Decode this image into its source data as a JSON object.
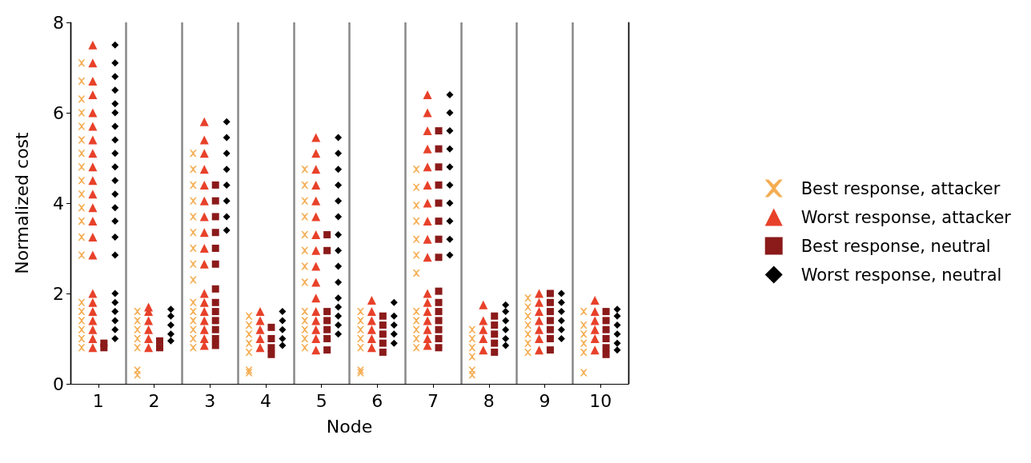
{
  "chart_data": {
    "type": "scatter",
    "xlabel": "Node",
    "ylabel": "Normalized cost",
    "categories": [
      "1",
      "2",
      "3",
      "4",
      "5",
      "6",
      "7",
      "8",
      "9",
      "10"
    ],
    "ylim": [
      0,
      8
    ],
    "yticks": [
      0,
      2,
      4,
      6,
      8
    ],
    "grid": "x",
    "legend": "right",
    "series": [
      {
        "name": "Best response, attacker",
        "color": "#f5ad52",
        "marker": "cross",
        "x": [
          "1",
          "1",
          "1",
          "1",
          "1",
          "1",
          "1",
          "1",
          "1",
          "1",
          "1",
          "1",
          "1",
          "1",
          "1",
          "1",
          "1",
          "1",
          "1",
          "1",
          "2",
          "2",
          "2",
          "2",
          "2",
          "2",
          "2",
          "3",
          "3",
          "3",
          "3",
          "3",
          "3",
          "3",
          "3",
          "3",
          "3",
          "3",
          "3",
          "3",
          "3",
          "3",
          "4",
          "4",
          "4",
          "4",
          "4",
          "4",
          "4",
          "5",
          "5",
          "5",
          "5",
          "5",
          "5",
          "5",
          "5",
          "5",
          "5",
          "5",
          "5",
          "5",
          "6",
          "6",
          "6",
          "6",
          "6",
          "6",
          "6",
          "7",
          "7",
          "7",
          "7",
          "7",
          "7",
          "7",
          "7",
          "7",
          "7",
          "7",
          "7",
          "8",
          "8",
          "8",
          "8",
          "8",
          "8",
          "9",
          "9",
          "9",
          "9",
          "9",
          "9",
          "9",
          "10",
          "10",
          "10",
          "10",
          "10",
          "10"
        ],
        "values": [
          0.8,
          1.0,
          1.2,
          1.4,
          1.6,
          1.8,
          2.85,
          3.25,
          3.6,
          3.9,
          4.2,
          4.5,
          4.8,
          5.1,
          5.4,
          5.7,
          6.0,
          6.3,
          6.7,
          7.1,
          0.2,
          0.3,
          0.8,
          1.0,
          1.2,
          1.4,
          1.6,
          0.8,
          1.0,
          1.2,
          1.4,
          1.6,
          1.8,
          2.3,
          2.65,
          3.0,
          3.35,
          3.7,
          4.05,
          4.4,
          4.75,
          5.1,
          0.25,
          0.3,
          0.7,
          0.9,
          1.1,
          1.3,
          1.5,
          0.8,
          1.0,
          1.2,
          1.4,
          1.6,
          2.25,
          2.6,
          2.95,
          3.3,
          3.7,
          4.05,
          4.4,
          4.75,
          0.25,
          0.3,
          0.8,
          1.0,
          1.2,
          1.4,
          1.6,
          0.8,
          1.0,
          1.2,
          1.4,
          1.6,
          2.45,
          2.85,
          3.2,
          3.6,
          3.95,
          4.35,
          4.75,
          0.2,
          0.3,
          0.6,
          0.8,
          1.0,
          1.2,
          0.7,
          0.9,
          1.1,
          1.3,
          1.5,
          1.7,
          1.9,
          0.25,
          0.7,
          0.9,
          1.1,
          1.3,
          1.6
        ]
      },
      {
        "name": "Worst response, attacker",
        "color": "#e8412a",
        "marker": "triangle",
        "x": [
          "1",
          "1",
          "1",
          "1",
          "1",
          "1",
          "1",
          "1",
          "1",
          "1",
          "1",
          "1",
          "1",
          "1",
          "1",
          "1",
          "1",
          "1",
          "1",
          "1",
          "1",
          "1",
          "2",
          "2",
          "2",
          "2",
          "2",
          "2",
          "3",
          "3",
          "3",
          "3",
          "3",
          "3",
          "3",
          "3",
          "3",
          "3",
          "3",
          "3",
          "3",
          "3",
          "3",
          "3",
          "3",
          "4",
          "4",
          "4",
          "4",
          "4",
          "5",
          "5",
          "5",
          "5",
          "5",
          "5",
          "5",
          "5",
          "5",
          "5",
          "5",
          "5",
          "5",
          "5",
          "5",
          "5",
          "6",
          "6",
          "6",
          "6",
          "6",
          "6",
          "7",
          "7",
          "7",
          "7",
          "7",
          "7",
          "7",
          "7",
          "7",
          "7",
          "7",
          "7",
          "7",
          "7",
          "7",
          "7",
          "7",
          "8",
          "8",
          "8",
          "8",
          "8",
          "9",
          "9",
          "9",
          "9",
          "9",
          "9",
          "9",
          "10",
          "10",
          "10",
          "10",
          "10",
          "10"
        ],
        "values": [
          0.8,
          1.0,
          1.2,
          1.4,
          1.6,
          1.8,
          2.0,
          2.85,
          3.25,
          3.6,
          3.9,
          4.2,
          4.5,
          4.8,
          5.1,
          5.4,
          5.7,
          6.0,
          6.4,
          6.7,
          7.1,
          7.5,
          0.8,
          1.0,
          1.2,
          1.4,
          1.6,
          1.7,
          0.85,
          1.0,
          1.2,
          1.4,
          1.6,
          1.8,
          2.0,
          2.65,
          3.0,
          3.35,
          3.7,
          4.05,
          4.4,
          4.75,
          5.1,
          5.4,
          5.8,
          0.8,
          1.0,
          1.2,
          1.4,
          1.6,
          0.75,
          1.0,
          1.2,
          1.4,
          1.6,
          1.9,
          2.25,
          2.6,
          2.95,
          3.3,
          3.7,
          4.05,
          4.4,
          4.75,
          5.1,
          5.45,
          0.8,
          1.0,
          1.2,
          1.4,
          1.6,
          1.85,
          0.85,
          1.0,
          1.2,
          1.4,
          1.6,
          1.8,
          2.0,
          2.8,
          3.2,
          3.6,
          4.0,
          4.4,
          4.8,
          5.2,
          5.6,
          6.0,
          6.4,
          0.75,
          1.0,
          1.2,
          1.4,
          1.75,
          0.75,
          1.0,
          1.2,
          1.4,
          1.6,
          1.8,
          2.0,
          0.75,
          1.0,
          1.2,
          1.4,
          1.6,
          1.85
        ]
      },
      {
        "name": "Best response, neutral",
        "color": "#8b1a1a",
        "marker": "square",
        "x": [
          "1",
          "1",
          "2",
          "2",
          "3",
          "3",
          "3",
          "3",
          "3",
          "3",
          "3",
          "3",
          "3",
          "3",
          "3",
          "3",
          "3",
          "4",
          "4",
          "4",
          "4",
          "5",
          "5",
          "5",
          "5",
          "5",
          "5",
          "5",
          "6",
          "6",
          "6",
          "6",
          "6",
          "7",
          "7",
          "7",
          "7",
          "7",
          "7",
          "7",
          "7",
          "7",
          "7",
          "7",
          "7",
          "7",
          "7",
          "7",
          "8",
          "8",
          "8",
          "8",
          "8",
          "9",
          "9",
          "9",
          "9",
          "9",
          "9",
          "9",
          "10",
          "10",
          "10",
          "10",
          "10",
          "10"
        ],
        "values": [
          0.8,
          0.9,
          0.8,
          0.95,
          0.85,
          1.0,
          1.2,
          1.4,
          1.6,
          1.8,
          2.1,
          2.65,
          3.0,
          3.35,
          3.7,
          4.05,
          4.4,
          0.65,
          0.8,
          1.0,
          1.25,
          0.75,
          1.0,
          1.2,
          1.4,
          1.6,
          2.95,
          3.3,
          0.7,
          0.9,
          1.1,
          1.3,
          1.5,
          0.8,
          1.0,
          1.2,
          1.4,
          1.6,
          1.8,
          2.05,
          2.8,
          3.2,
          3.6,
          4.0,
          4.4,
          4.8,
          5.2,
          5.6,
          0.7,
          0.9,
          1.1,
          1.3,
          1.5,
          0.75,
          1.0,
          1.2,
          1.4,
          1.6,
          1.8,
          2.0,
          0.65,
          0.8,
          1.0,
          1.2,
          1.4,
          1.6
        ]
      },
      {
        "name": "Worst response, neutral",
        "color": "#000000",
        "marker": "diamond",
        "x": [
          "1",
          "1",
          "1",
          "1",
          "1",
          "1",
          "1",
          "1",
          "1",
          "1",
          "1",
          "1",
          "1",
          "1",
          "1",
          "1",
          "1",
          "1",
          "1",
          "1",
          "1",
          "1",
          "2",
          "2",
          "2",
          "2",
          "2",
          "3",
          "3",
          "3",
          "3",
          "3",
          "3",
          "3",
          "3",
          "4",
          "4",
          "4",
          "4",
          "4",
          "5",
          "5",
          "5",
          "5",
          "5",
          "5",
          "5",
          "5",
          "5",
          "5",
          "5",
          "5",
          "5",
          "5",
          "5",
          "6",
          "6",
          "6",
          "6",
          "6",
          "7",
          "7",
          "7",
          "7",
          "7",
          "7",
          "7",
          "7",
          "7",
          "7",
          "8",
          "8",
          "8",
          "8",
          "8",
          "8",
          "9",
          "9",
          "9",
          "9",
          "9",
          "9",
          "10",
          "10",
          "10",
          "10",
          "10",
          "10"
        ],
        "values": [
          1.0,
          1.2,
          1.4,
          1.6,
          1.8,
          2.0,
          2.85,
          3.25,
          3.6,
          3.9,
          4.2,
          4.5,
          4.8,
          5.1,
          5.4,
          5.7,
          6.0,
          6.2,
          6.5,
          6.8,
          7.1,
          7.5,
          0.95,
          1.1,
          1.3,
          1.5,
          1.65,
          3.4,
          3.7,
          4.05,
          4.4,
          4.75,
          5.1,
          5.45,
          5.8,
          0.85,
          1.0,
          1.2,
          1.4,
          1.6,
          1.1,
          1.3,
          1.5,
          1.7,
          1.9,
          2.25,
          2.6,
          2.95,
          3.3,
          3.7,
          4.05,
          4.4,
          4.75,
          5.1,
          5.45,
          0.9,
          1.1,
          1.3,
          1.5,
          1.8,
          2.85,
          3.2,
          3.6,
          4.0,
          4.4,
          4.8,
          5.2,
          5.6,
          6.0,
          6.4,
          0.85,
          1.0,
          1.2,
          1.4,
          1.6,
          1.75,
          1.0,
          1.2,
          1.4,
          1.6,
          1.8,
          2.0,
          0.75,
          0.9,
          1.1,
          1.3,
          1.5,
          1.65
        ]
      }
    ]
  }
}
